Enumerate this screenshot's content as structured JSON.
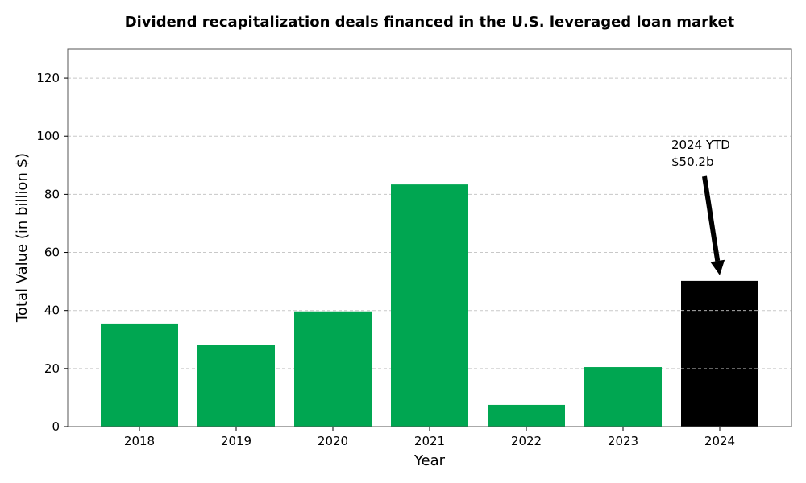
{
  "chart_data": {
    "type": "bar",
    "title": "Dividend recapitalization deals financed in the U.S. leveraged loan market",
    "xlabel": "Year",
    "ylabel": "Total Value (in billion $)",
    "categories": [
      "2018",
      "2019",
      "2020",
      "2021",
      "2022",
      "2023",
      "2024"
    ],
    "values": [
      35.5,
      28.0,
      39.7,
      83.4,
      7.5,
      20.5,
      50.2
    ],
    "ylim": [
      0,
      130
    ],
    "yticks": [
      0,
      20,
      40,
      60,
      80,
      100,
      120
    ],
    "grid": true,
    "bar_color": "#00a651",
    "highlight_index": 6,
    "highlight_color": "#000000",
    "annotation": {
      "line1": "2024 YTD",
      "line2": "$50.2b",
      "target_category": "2024",
      "target_value": 50.2
    }
  }
}
